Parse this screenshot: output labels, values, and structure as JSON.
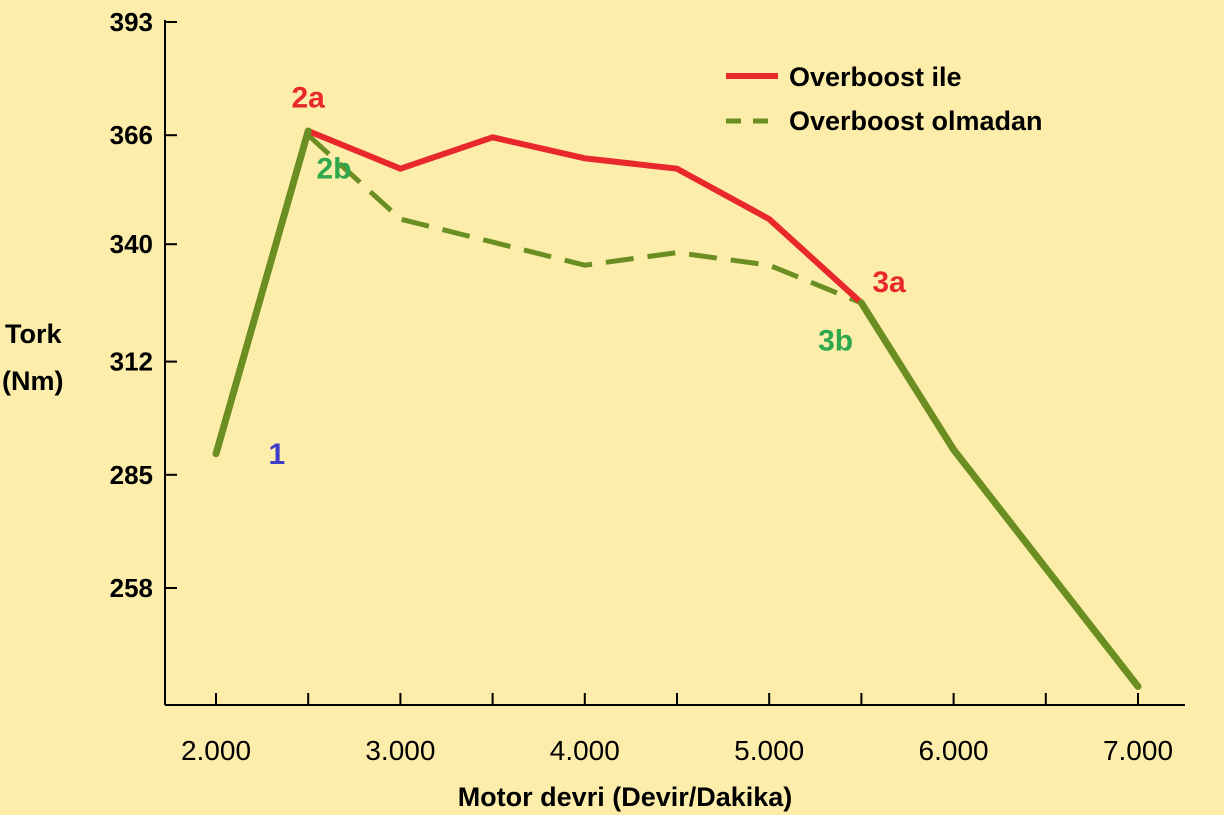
{
  "chart_data": {
    "type": "line",
    "xlabel": "Motor devri (Devir/Dakika)",
    "ylabel": [
      "Tork",
      "(Nm)"
    ],
    "x_ticks": [
      2000,
      3000,
      4000,
      5000,
      6000,
      7000
    ],
    "x_tick_labels": [
      "2.000",
      "3.000",
      "4.000",
      "5.000",
      "6.000",
      "7.000"
    ],
    "y_ticks": [
      258,
      285,
      312,
      340,
      366,
      393
    ],
    "y_tick_labels": [
      "258",
      "285",
      "312",
      "340",
      "366",
      "393"
    ],
    "xlim": [
      1500,
      7450
    ],
    "ylim": [
      233,
      393
    ],
    "grid": false,
    "legend_position": "top-right",
    "series": [
      {
        "name": "Overboost ile",
        "color": "#E8282B",
        "style": "solid",
        "x": [
          2500,
          3000,
          3500,
          4000,
          4500,
          5000,
          5500
        ],
        "y": [
          367,
          358,
          365.5,
          360.5,
          358,
          346,
          326
        ]
      },
      {
        "name": "Overboost olmadan",
        "color": "#6B8E23",
        "style": "dashed",
        "x": [
          2500,
          3000,
          3500,
          4000,
          4500,
          5000,
          5500
        ],
        "y": [
          366,
          346,
          340.5,
          335,
          338,
          335,
          326
        ]
      },
      {
        "name": "",
        "color": "#6B8E23",
        "style": "solid-thick",
        "x": [
          2000,
          2500
        ],
        "y": [
          290,
          367
        ]
      },
      {
        "name": "",
        "color": "#6B8E23",
        "style": "solid-thick",
        "x": [
          5500,
          6000,
          7000
        ],
        "y": [
          326,
          291,
          234.5
        ]
      }
    ],
    "annotations": [
      {
        "text": "1",
        "color": "#3D3DC9",
        "x": 2330,
        "y": 290
      },
      {
        "text": "2a",
        "color": "#E8282B",
        "x": 2500,
        "y": 375
      },
      {
        "text": "2b",
        "color": "#2DA84C",
        "x": 2640,
        "y": 358
      },
      {
        "text": "3a",
        "color": "#E8282B",
        "x": 5650,
        "y": 331
      },
      {
        "text": "3b",
        "color": "#2DA84C",
        "x": 5360,
        "y": 317
      }
    ]
  }
}
